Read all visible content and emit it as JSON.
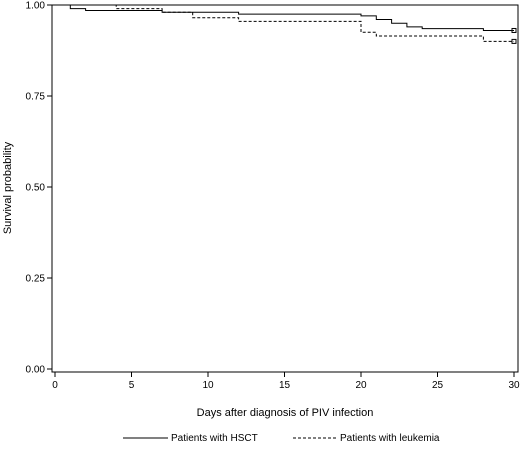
{
  "chart_data": {
    "type": "line",
    "title": "",
    "xlabel": "Days after diagnosis of PIV infection",
    "ylabel": "Survival probability",
    "xlim": [
      0,
      30
    ],
    "ylim": [
      0,
      1
    ],
    "x_ticks": [
      0,
      5,
      10,
      15,
      20,
      25,
      30
    ],
    "x_tick_labels": [
      "0",
      "5",
      "10",
      "15",
      "20",
      "25",
      "30"
    ],
    "y_ticks": [
      0,
      0.25,
      0.5,
      0.75,
      1
    ],
    "y_tick_labels": [
      "0.00",
      "0.25",
      "0.50",
      "0.75",
      "1.00"
    ],
    "grid": false,
    "legend_position": "bottom",
    "step": true,
    "series": [
      {
        "name": "Patients with HSCT",
        "line_style": "solid",
        "x": [
          0,
          1,
          2,
          7,
          12,
          20,
          21,
          22,
          23,
          24,
          28,
          30
        ],
        "y": [
          1.0,
          0.99,
          0.985,
          0.98,
          0.975,
          0.97,
          0.96,
          0.95,
          0.94,
          0.935,
          0.93,
          0.93
        ],
        "censored_end": true
      },
      {
        "name": "Patients with leukemia",
        "line_style": "dashed",
        "x": [
          0,
          4,
          7,
          9,
          12,
          20,
          21,
          28,
          30
        ],
        "y": [
          1.0,
          0.99,
          0.98,
          0.965,
          0.955,
          0.925,
          0.915,
          0.9,
          0.9
        ],
        "censored_end": true
      }
    ]
  }
}
